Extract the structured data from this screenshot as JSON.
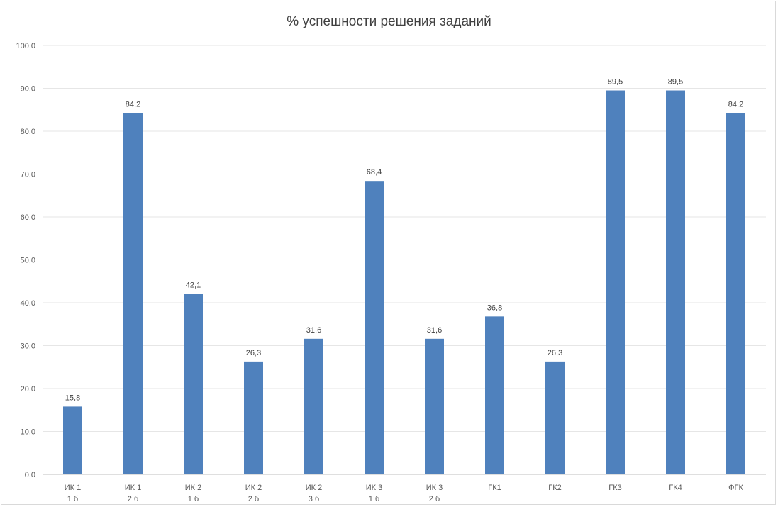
{
  "chart_data": {
    "type": "bar",
    "title": "% успешности решения заданий",
    "xlabel": "",
    "ylabel": "",
    "ylim": [
      0,
      100
    ],
    "yticks": [
      "0,0",
      "10,0",
      "20,0",
      "30,0",
      "40,0",
      "50,0",
      "60,0",
      "70,0",
      "80,0",
      "90,0",
      "100,0"
    ],
    "categories": [
      [
        "ИК 1",
        "1 б"
      ],
      [
        "ИК 1",
        "2 б"
      ],
      [
        "ИК 2",
        "1 б"
      ],
      [
        "ИК 2",
        "2 б"
      ],
      [
        "ИК 2",
        "3 б"
      ],
      [
        "ИК 3",
        "1 б"
      ],
      [
        "ИК 3",
        "2 б"
      ],
      [
        "ГК1"
      ],
      [
        "ГК2"
      ],
      [
        "ГК3"
      ],
      [
        "ГК4"
      ],
      [
        "ФГК"
      ]
    ],
    "values": [
      15.8,
      84.2,
      42.1,
      26.3,
      31.6,
      68.4,
      31.6,
      36.8,
      26.3,
      89.5,
      89.5,
      84.2
    ],
    "data_labels": [
      "15,8",
      "84,2",
      "42,1",
      "26,3",
      "31,6",
      "68,4",
      "31,6",
      "36,8",
      "26,3",
      "89,5",
      "89,5",
      "84,2"
    ],
    "grid": true,
    "legend": "none",
    "colors": {
      "bar": "#4f81bd",
      "grid": "#e6e6e6",
      "axis": "#bfbfbf"
    }
  }
}
